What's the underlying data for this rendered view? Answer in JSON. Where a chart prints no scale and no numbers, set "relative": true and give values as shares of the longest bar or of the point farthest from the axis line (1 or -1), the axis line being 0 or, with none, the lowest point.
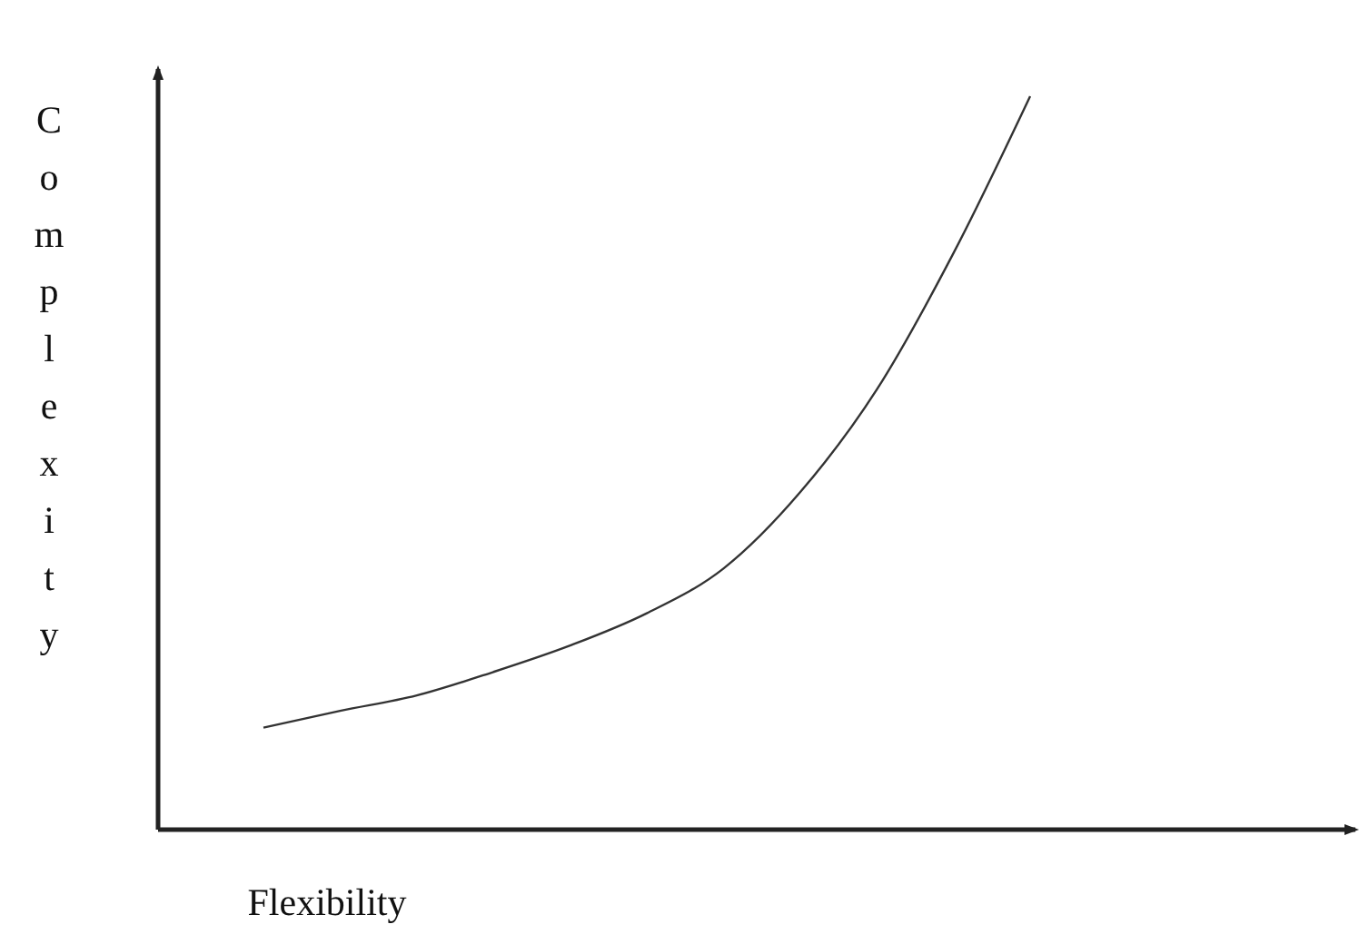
{
  "chart_data": {
    "type": "line",
    "relative": true,
    "xlabel": "Flexibility",
    "ylabel": "Complexity",
    "categories": [
      null,
      null,
      null,
      null,
      null,
      null,
      null,
      null,
      null,
      null,
      null
    ],
    "series": [
      {
        "color": "#333333",
        "values": [
          0.139,
          0.162,
          0.183,
          0.215,
          0.251,
          0.295,
          0.356,
          0.46,
          0.6,
          0.786,
          1
        ]
      }
    ],
    "grid": false,
    "marker": "none",
    "line_style": "solid"
  }
}
